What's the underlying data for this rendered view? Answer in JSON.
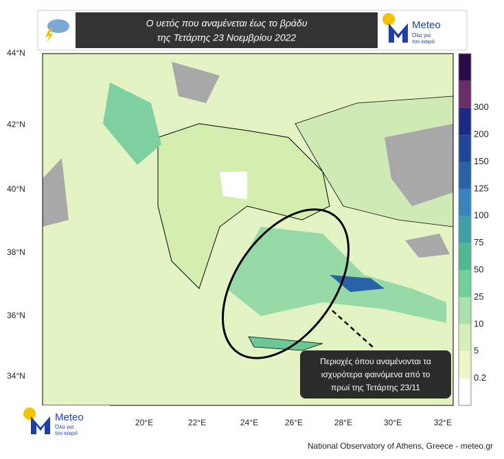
{
  "header": {
    "title_line1": "Ο υετός που αναμένεται έως το βράδυ",
    "title_line2": "της Τετάρτης 23 Νοεμβρίου 2022"
  },
  "logo": {
    "name": "Meteo",
    "tagline_line1": "Όλα για",
    "tagline_line2": "τον καιρό"
  },
  "map": {
    "lat_labels": [
      "44°N",
      "42°N",
      "40°N",
      "38°N",
      "36°N",
      "34°N"
    ],
    "lon_labels": [
      "20°E",
      "22°E",
      "24°E",
      "26°E",
      "28°E",
      "30°E",
      "32°E"
    ],
    "annotation": [
      "Περιοχές όπου αναμένονται τα",
      "ισχυρότερα φαινόμενα από το",
      "πρωί της Τετάρτης 23/11"
    ]
  },
  "colorbar": {
    "ticks": [
      0.2,
      5,
      10,
      25,
      50,
      75,
      100,
      125,
      150,
      200,
      300
    ],
    "colors": [
      "#ffffff",
      "#eef5c8",
      "#d6efb8",
      "#a9e2ab",
      "#72cf98",
      "#4fb991",
      "#3f9fa6",
      "#3582bd",
      "#2a62a8",
      "#1f4696",
      "#1c2a86",
      "#6a2d6b",
      "#2c0b49"
    ]
  },
  "footer": "National Observatory of Athens, Greece - meteo.gr"
}
